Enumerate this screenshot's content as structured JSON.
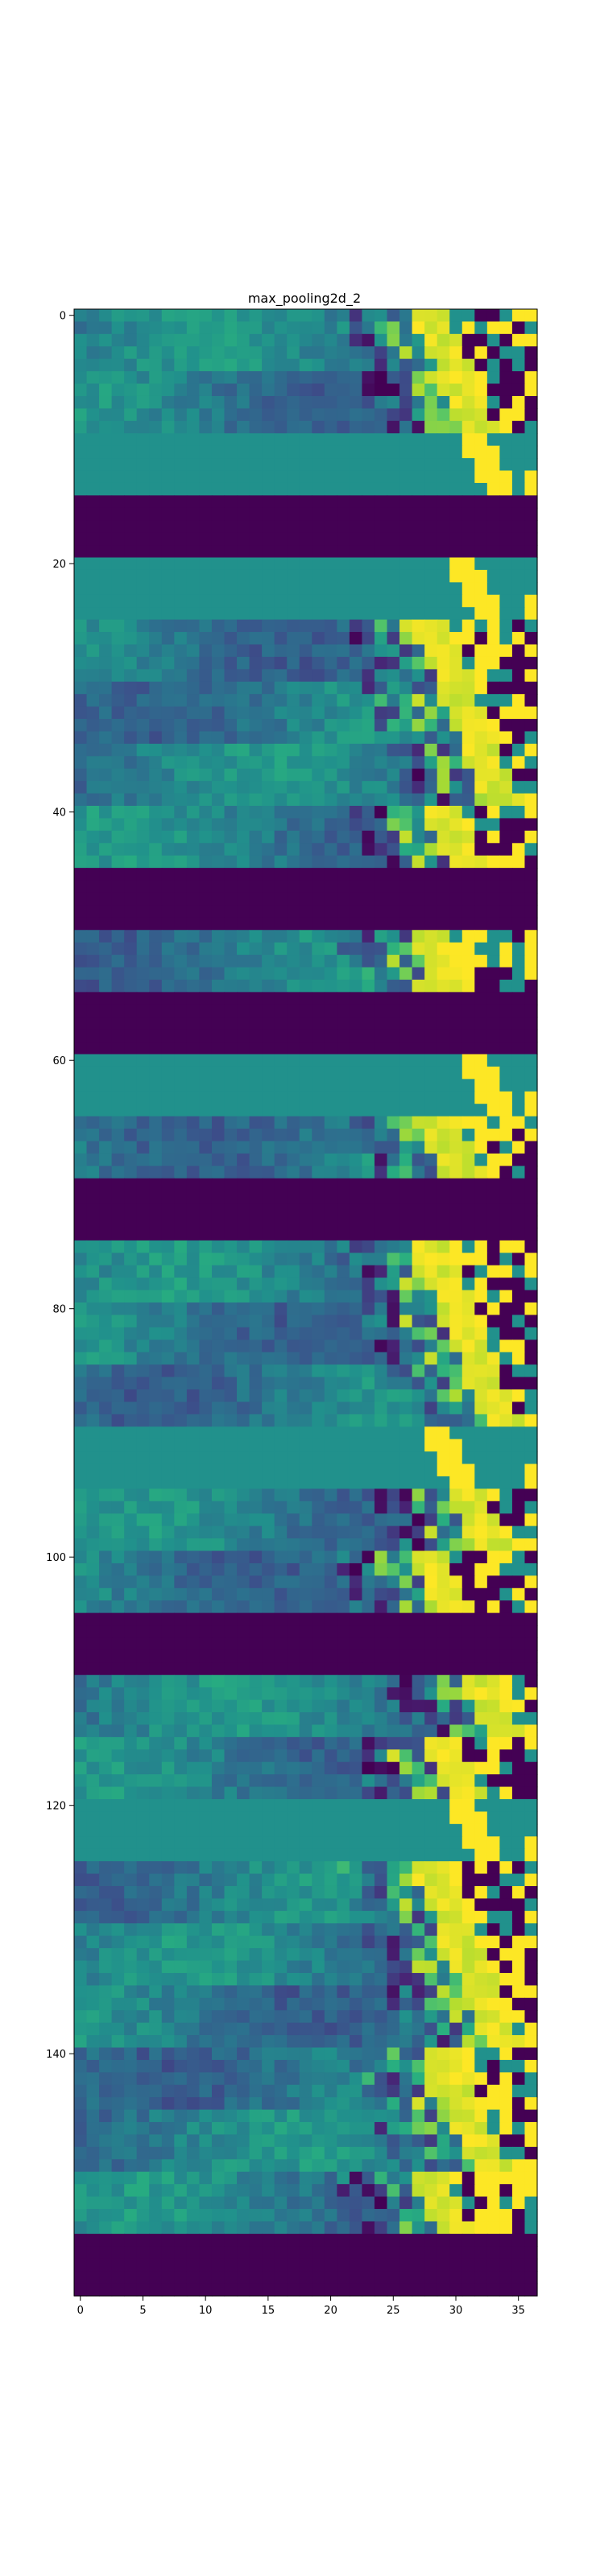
{
  "chart_data": {
    "type": "heatmap",
    "title": "max_pooling2d_2",
    "xlabel": "",
    "ylabel": "",
    "colormap": "viridis",
    "n_cols": 37,
    "n_rows": 160,
    "xlim": [
      -0.5,
      36.5
    ],
    "ylim": [
      159.5,
      -0.5
    ],
    "x_ticks": [
      0,
      5,
      10,
      15,
      20,
      25,
      30,
      35
    ],
    "y_ticks": [
      0,
      20,
      40,
      60,
      80,
      100,
      120,
      140
    ],
    "dead_row_ranges": [
      [
        15,
        19
      ],
      [
        45,
        49
      ],
      [
        55,
        59
      ],
      [
        70,
        74
      ],
      [
        105,
        109
      ],
      [
        155,
        159
      ]
    ],
    "uniform_row_ranges": [
      [
        10,
        14
      ],
      [
        20,
        24
      ],
      [
        60,
        64
      ],
      [
        90,
        94
      ],
      [
        120,
        124
      ]
    ],
    "colors": {
      "viridis_low": "#440154",
      "viridis_mid": "#21918c",
      "viridis_high": "#fde725",
      "background": "#ffffff"
    }
  }
}
